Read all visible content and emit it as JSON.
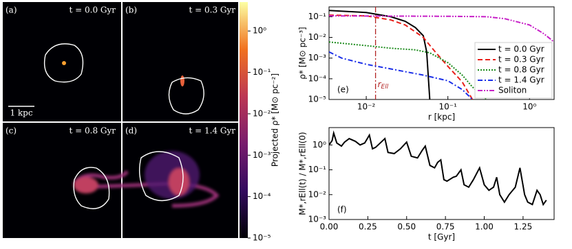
{
  "panels": [
    {
      "letter": "(a)",
      "time": "t = 0.0 Gyr"
    },
    {
      "letter": "(b)",
      "time": "t = 0.3 Gyr"
    },
    {
      "letter": "(c)",
      "time": "t = 0.8 Gyr"
    },
    {
      "letter": "(d)",
      "time": "t = 1.4 Gyr"
    }
  ],
  "scale_bar": "1 kpc",
  "colorbar": {
    "label": "Projected ρ* [M⊙ pc⁻²]",
    "log": true,
    "lim": [
      1e-05,
      5
    ],
    "ticks": [
      {
        "value": 1e-05,
        "label": "10⁻⁵"
      },
      {
        "value": 0.0001,
        "label": "10⁻⁴"
      },
      {
        "value": 0.001,
        "label": "10⁻³"
      },
      {
        "value": 0.01,
        "label": "10⁻²"
      },
      {
        "value": 0.1,
        "label": "10⁻¹"
      },
      {
        "value": 1,
        "label": "10⁰"
      }
    ]
  },
  "chart_data": [
    {
      "type": "line",
      "panel_label": "(e)",
      "x_label": "r [kpc]",
      "y_label": "ρ* [M⊙ pc⁻³]",
      "xlog": true,
      "ylog": true,
      "xlim": [
        0.0035,
        2
      ],
      "ylim": [
        1e-05,
        0.3
      ],
      "xticks": [
        {
          "value": 0.01,
          "label": "10⁻²"
        },
        {
          "value": 0.1,
          "label": "10⁻¹"
        },
        {
          "value": 1,
          "label": "10⁰"
        }
      ],
      "yticks": [
        {
          "value": 1e-05,
          "label": "10⁻⁵"
        },
        {
          "value": 0.0001,
          "label": "10⁻⁴"
        },
        {
          "value": 0.001,
          "label": "10⁻³"
        },
        {
          "value": 0.01,
          "label": "10⁻²"
        },
        {
          "value": 0.1,
          "label": "10⁻¹"
        }
      ],
      "vline": {
        "x": 0.013,
        "label": "r",
        "label_sub": "Ell",
        "color": "#b22222"
      },
      "legend": "right",
      "series": [
        {
          "name": "t = 0.0 Gyr",
          "color": "#000000",
          "dash": "none",
          "x": [
            0.0035,
            0.01,
            0.02,
            0.03,
            0.04,
            0.05,
            0.055,
            0.06
          ],
          "values": [
            0.2,
            0.16,
            0.1,
            0.06,
            0.03,
            0.012,
            0.002,
            1e-05
          ]
        },
        {
          "name": "t = 0.3 Gyr",
          "color": "#e8201a",
          "dash": "7 4",
          "x": [
            0.0035,
            0.01,
            0.02,
            0.03,
            0.05,
            0.07,
            0.1,
            0.15,
            0.2
          ],
          "values": [
            0.12,
            0.11,
            0.07,
            0.04,
            0.01,
            0.002,
            0.0004,
            7e-05,
            1e-05
          ]
        },
        {
          "name": "t = 0.8 Gyr",
          "color": "#1a8a1a",
          "dash": "2 2",
          "x": [
            0.0035,
            0.01,
            0.02,
            0.04,
            0.06,
            0.1,
            0.15,
            0.2,
            0.3
          ],
          "values": [
            0.006,
            0.004,
            0.003,
            0.0025,
            0.0018,
            0.0006,
            0.00015,
            4e-05,
            1e-05
          ]
        },
        {
          "name": "t = 1.4 Gyr",
          "color": "#1a2ee8",
          "dash": "7 3 2 3",
          "x": [
            0.0035,
            0.005,
            0.01,
            0.02,
            0.05,
            0.1,
            0.15,
            0.2
          ],
          "values": [
            0.002,
            0.001,
            0.0005,
            0.0003,
            0.00015,
            8e-05,
            3e-05,
            1e-05
          ]
        },
        {
          "name": "Soliton",
          "color": "#c71fc7",
          "dash": "7 2 2 2 2 2",
          "x": [
            0.0035,
            0.1,
            0.3,
            0.5,
            1,
            1.5,
            2
          ],
          "values": [
            0.11,
            0.105,
            0.1,
            0.08,
            0.04,
            0.015,
            0.006
          ]
        }
      ]
    },
    {
      "type": "line",
      "panel_label": "(f)",
      "x_label": "t [Gyr]",
      "y_label": "M*,rEll(t) / M*,rEll(0)",
      "xlog": false,
      "ylog": true,
      "xlim": [
        0,
        1.45
      ],
      "ylim": [
        0.001,
        5
      ],
      "xticks": [
        {
          "value": 0,
          "label": "0.00"
        },
        {
          "value": 0.25,
          "label": "0.25"
        },
        {
          "value": 0.5,
          "label": "0.50"
        },
        {
          "value": 0.75,
          "label": "0.75"
        },
        {
          "value": 1,
          "label": "1.00"
        },
        {
          "value": 1.25,
          "label": "1.25"
        }
      ],
      "yticks": [
        {
          "value": 0.001,
          "label": "10⁻³"
        },
        {
          "value": 0.01,
          "label": "10⁻²"
        },
        {
          "value": 0.1,
          "label": "10⁻¹"
        },
        {
          "value": 1,
          "label": "10⁰"
        }
      ],
      "series": [
        {
          "color": "#000000",
          "dash": "none",
          "x": [
            0,
            0.02,
            0.03,
            0.05,
            0.08,
            0.1,
            0.13,
            0.17,
            0.2,
            0.23,
            0.26,
            0.28,
            0.3,
            0.33,
            0.36,
            0.38,
            0.42,
            0.46,
            0.5,
            0.53,
            0.57,
            0.6,
            0.62,
            0.65,
            0.68,
            0.7,
            0.72,
            0.74,
            0.76,
            0.8,
            0.82,
            0.85,
            0.87,
            0.9,
            0.93,
            0.97,
            1,
            1.03,
            1.06,
            1.08,
            1.1,
            1.13,
            1.16,
            1.2,
            1.23,
            1.26,
            1.28,
            1.31,
            1.34,
            1.36,
            1.38,
            1.4
          ],
          "values": [
            1,
            1.5,
            3,
            1.2,
            0.9,
            1.3,
            1.8,
            1.4,
            1,
            1.2,
            2.5,
            0.7,
            0.8,
            1.2,
            1.8,
            0.5,
            0.45,
            0.7,
            1.3,
            0.35,
            0.3,
            0.6,
            0.9,
            0.15,
            0.12,
            0.2,
            0.25,
            0.04,
            0.035,
            0.05,
            0.055,
            0.1,
            0.025,
            0.02,
            0.04,
            0.12,
            0.025,
            0.015,
            0.02,
            0.05,
            0.01,
            0.005,
            0.01,
            0.02,
            0.12,
            0.01,
            0.005,
            0.004,
            0.015,
            0.01,
            0.004,
            0.006
          ]
        }
      ]
    }
  ]
}
